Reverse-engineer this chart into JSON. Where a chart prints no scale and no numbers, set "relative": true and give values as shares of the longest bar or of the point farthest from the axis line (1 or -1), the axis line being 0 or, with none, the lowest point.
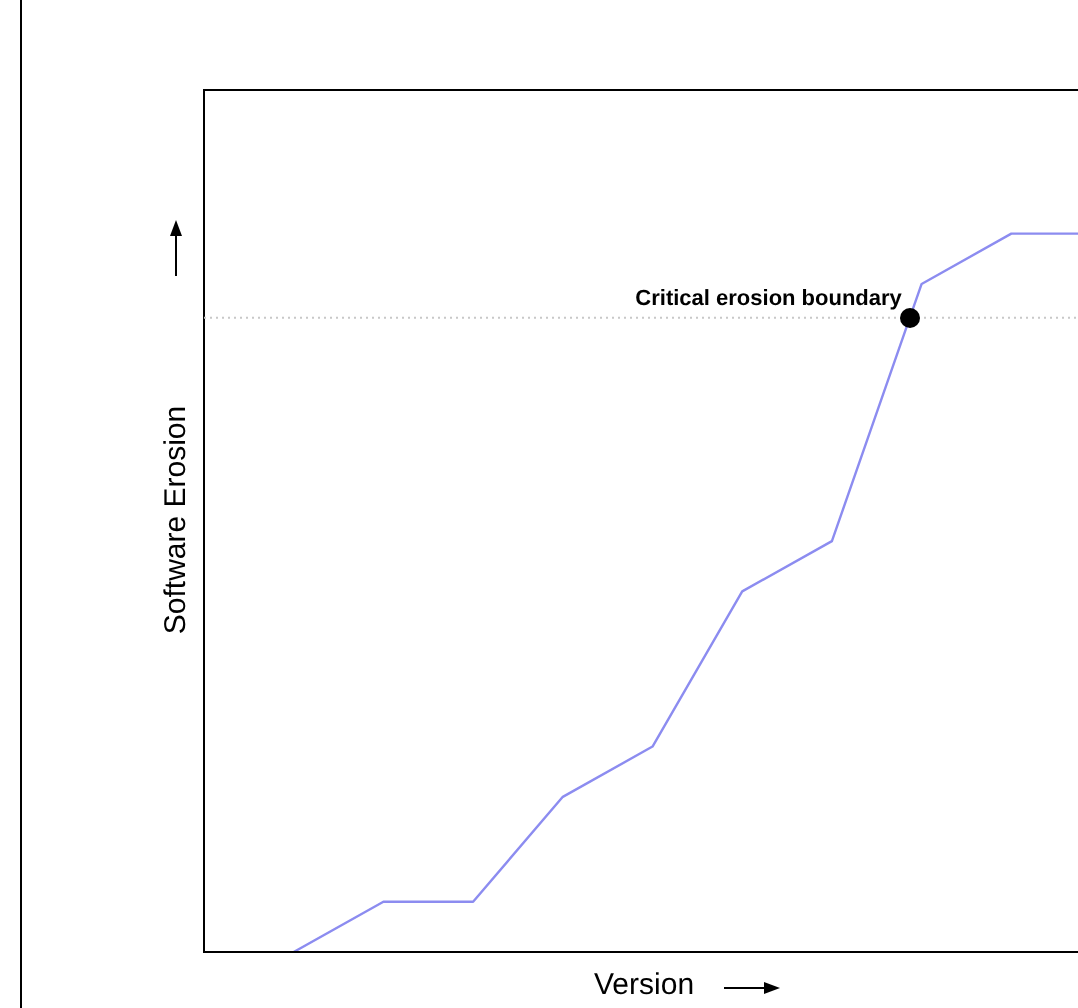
{
  "chart_data": {
    "type": "line",
    "relative": true,
    "xlabel": "Version",
    "ylabel": "Software Erosion",
    "categories": [
      null,
      null,
      null,
      null,
      null,
      null,
      null,
      null,
      null,
      null
    ],
    "series": [
      {
        "color": "#8c8cf0",
        "values": [
          0,
          0.07,
          0.07,
          0.216,
          0.286,
          0.502,
          0.572,
          0.93,
          1,
          1
        ]
      }
    ],
    "ref_lines": [
      {
        "axis": "y",
        "value": 0.883,
        "color": "#c8c8c8",
        "line_style": "dotted"
      }
    ],
    "annotations": [
      {
        "text": "Critical erosion boundary",
        "y": 0.883
      }
    ],
    "marker": "none",
    "line_style": "solid",
    "legend": false
  }
}
